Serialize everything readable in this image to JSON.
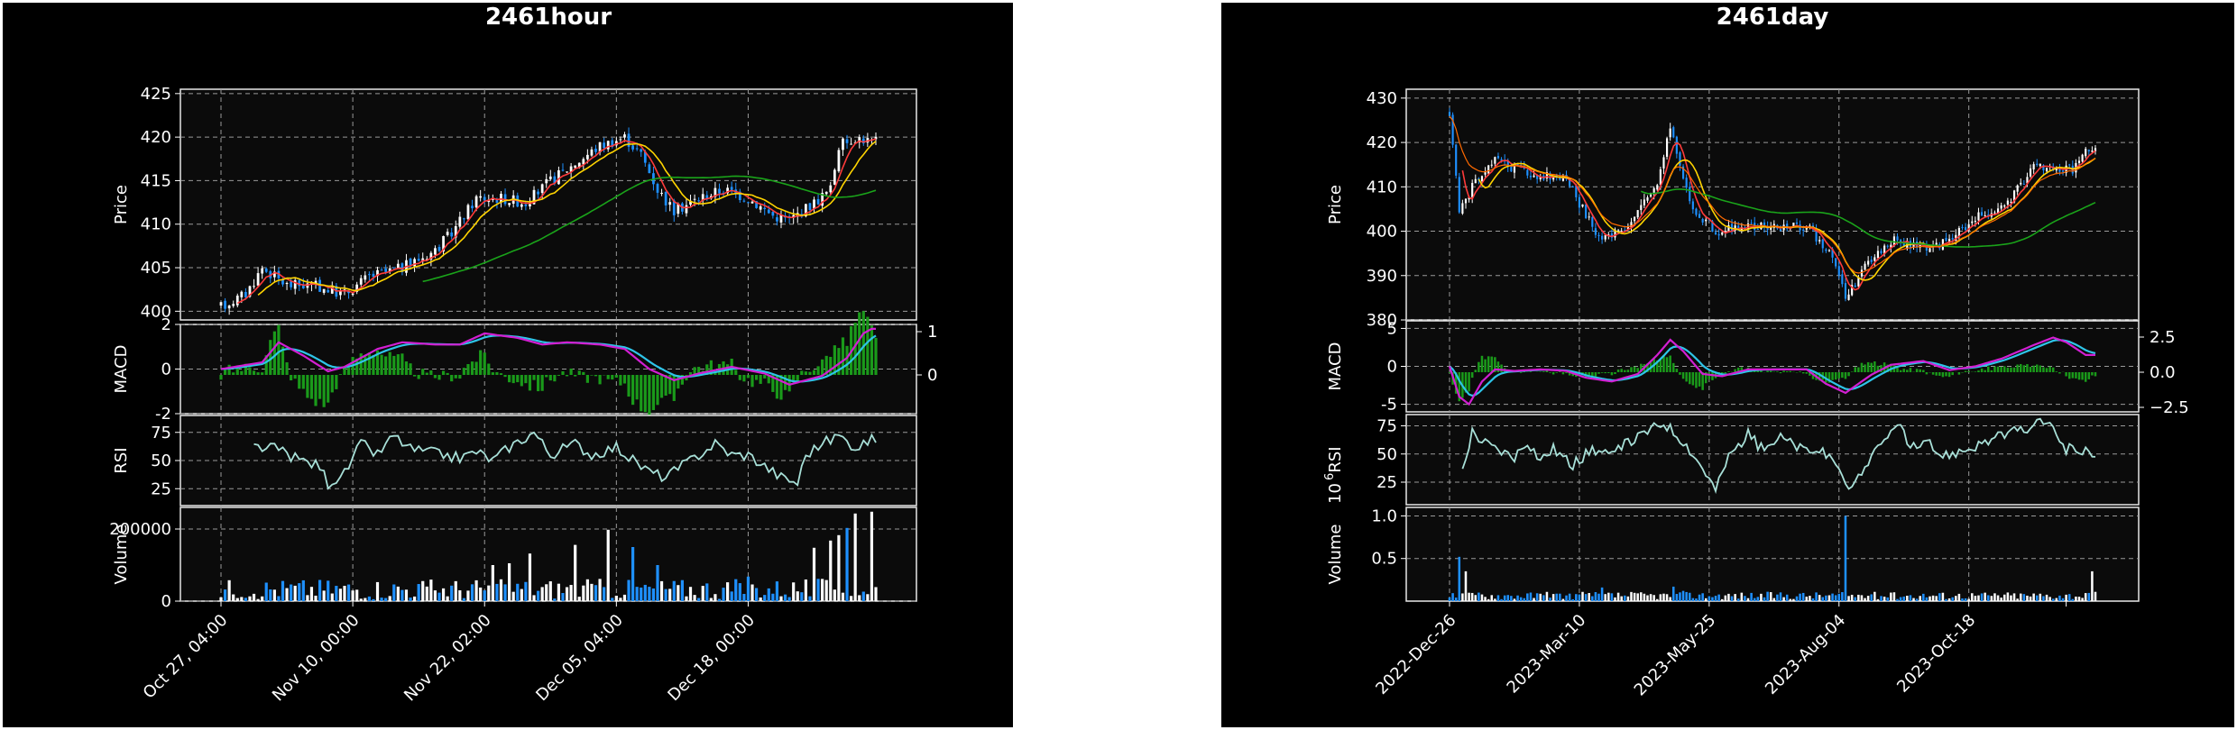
{
  "chart_data": [
    {
      "type": "candlestick",
      "title": "2461hour",
      "panels": [
        {
          "ylabel": "Price",
          "yticks": [
            400,
            405,
            410,
            415,
            420,
            425
          ],
          "ylim": [
            399,
            425.5
          ]
        },
        {
          "ylabel": "MACD",
          "yticks_left": [
            -2,
            0,
            2
          ],
          "yticks_right": [
            0,
            1
          ],
          "ylim": [
            -2,
            2
          ]
        },
        {
          "ylabel": "RSI",
          "yticks": [
            25,
            50,
            75
          ],
          "ylim": [
            10,
            90
          ]
        },
        {
          "ylabel": "Volume",
          "yticks": [
            0,
            200000
          ],
          "ytick_labels": [
            "0",
            "200000"
          ],
          "ylim": [
            0,
            260000
          ]
        }
      ],
      "xtick_labels": [
        "Oct 27, 04:00",
        "Nov 10, 00:00",
        "Nov 22, 02:00",
        "Dec 05, 04:00",
        "Dec 18, 00:00"
      ],
      "price_anchors": [
        [
          0,
          400.5
        ],
        [
          6,
          402
        ],
        [
          10,
          405
        ],
        [
          16,
          403
        ],
        [
          22,
          403
        ],
        [
          30,
          402
        ],
        [
          36,
          404
        ],
        [
          44,
          405
        ],
        [
          52,
          407
        ],
        [
          56,
          409
        ],
        [
          62,
          413
        ],
        [
          68,
          413
        ],
        [
          74,
          412.5
        ],
        [
          80,
          415
        ],
        [
          86,
          417
        ],
        [
          92,
          419
        ],
        [
          98,
          420
        ],
        [
          102,
          418
        ],
        [
          106,
          414
        ],
        [
          110,
          411.5
        ],
        [
          116,
          413
        ],
        [
          122,
          414
        ],
        [
          128,
          413
        ],
        [
          134,
          411
        ],
        [
          138,
          410.5
        ],
        [
          144,
          412.5
        ],
        [
          148,
          414
        ],
        [
          150,
          419
        ],
        [
          154,
          420
        ],
        [
          158,
          419.5
        ]
      ],
      "macd_anchors": [
        [
          0,
          0
        ],
        [
          10,
          0.3
        ],
        [
          14,
          1.2
        ],
        [
          20,
          0.6
        ],
        [
          26,
          -0.1
        ],
        [
          30,
          0.1
        ],
        [
          38,
          0.9
        ],
        [
          44,
          1.2
        ],
        [
          52,
          1.1
        ],
        [
          58,
          1.1
        ],
        [
          64,
          1.6
        ],
        [
          72,
          1.4
        ],
        [
          78,
          1.1
        ],
        [
          84,
          1.2
        ],
        [
          92,
          1.1
        ],
        [
          98,
          0.9
        ],
        [
          104,
          0
        ],
        [
          110,
          -0.5
        ],
        [
          116,
          -0.2
        ],
        [
          124,
          0.1
        ],
        [
          132,
          -0.2
        ],
        [
          138,
          -0.7
        ],
        [
          146,
          -0.3
        ],
        [
          152,
          0.5
        ],
        [
          156,
          1.6
        ],
        [
          158,
          1.8
        ]
      ],
      "rsi_anchors": [
        [
          8,
          62
        ],
        [
          14,
          60
        ],
        [
          18,
          52
        ],
        [
          24,
          45
        ],
        [
          26,
          30
        ],
        [
          30,
          38
        ],
        [
          34,
          65
        ],
        [
          38,
          55
        ],
        [
          42,
          72
        ],
        [
          46,
          60
        ],
        [
          54,
          55
        ],
        [
          58,
          52
        ],
        [
          62,
          58
        ],
        [
          66,
          50
        ],
        [
          70,
          62
        ],
        [
          76,
          75
        ],
        [
          80,
          55
        ],
        [
          86,
          65
        ],
        [
          90,
          55
        ],
        [
          96,
          62
        ],
        [
          100,
          50
        ],
        [
          104,
          40
        ],
        [
          108,
          35
        ],
        [
          112,
          45
        ],
        [
          116,
          55
        ],
        [
          120,
          65
        ],
        [
          124,
          55
        ],
        [
          128,
          55
        ],
        [
          132,
          45
        ],
        [
          136,
          35
        ],
        [
          140,
          30
        ],
        [
          142,
          55
        ],
        [
          146,
          65
        ],
        [
          150,
          72
        ],
        [
          154,
          62
        ],
        [
          158,
          68
        ]
      ],
      "volume_spikes": [
        [
          66,
          100000
        ],
        [
          70,
          105000
        ],
        [
          75,
          132000
        ],
        [
          86,
          156000
        ],
        [
          94,
          198000
        ],
        [
          100,
          150000
        ],
        [
          106,
          100000
        ],
        [
          128,
          68000
        ],
        [
          144,
          148000
        ],
        [
          148,
          168000
        ],
        [
          150,
          183000
        ],
        [
          152,
          203000
        ],
        [
          154,
          243000
        ],
        [
          158,
          248000
        ]
      ]
    },
    {
      "type": "candlestick",
      "title": "2461day",
      "panels": [
        {
          "ylabel": "Price",
          "yticks": [
            380,
            390,
            400,
            410,
            420,
            430
          ],
          "ylim": [
            380,
            432
          ]
        },
        {
          "ylabel": "MACD",
          "yticks_left": [
            -5,
            0,
            5
          ],
          "yticks_right": [
            -2.5,
            0.0,
            2.5
          ],
          "ytick_right_labels": [
            "−2.5",
            "0.0",
            "2.5"
          ],
          "ylim": [
            -6,
            6
          ]
        },
        {
          "ylabel": "RSI",
          "yticks": [
            25,
            50,
            75
          ],
          "ylim": [
            5,
            85
          ]
        },
        {
          "ylabel": "Volume",
          "yticks": [
            0.5,
            1.0
          ],
          "ytick_labels": [
            "0.5",
            "1.0"
          ],
          "ylim": [
            0,
            1.1
          ],
          "offset_label": "10",
          "offset_exponent": "6"
        }
      ],
      "xtick_labels": [
        "2022-Dec-26",
        "2023-Mar-10",
        "2023-May-25",
        "2023-Aug-04",
        "2023-Oct-18"
      ],
      "price_anchors": [
        [
          0,
          427
        ],
        [
          3,
          405
        ],
        [
          8,
          411
        ],
        [
          14,
          416
        ],
        [
          24,
          413
        ],
        [
          36,
          412
        ],
        [
          46,
          398
        ],
        [
          56,
          402
        ],
        [
          64,
          411
        ],
        [
          68,
          424
        ],
        [
          74,
          406
        ],
        [
          82,
          400
        ],
        [
          90,
          401
        ],
        [
          100,
          401
        ],
        [
          110,
          401
        ],
        [
          118,
          395
        ],
        [
          122,
          385
        ],
        [
          128,
          392
        ],
        [
          136,
          398
        ],
        [
          146,
          396
        ],
        [
          154,
          398
        ],
        [
          162,
          403
        ],
        [
          172,
          406
        ],
        [
          180,
          415
        ],
        [
          186,
          414
        ],
        [
          192,
          414
        ],
        [
          196,
          418
        ]
      ],
      "macd_anchors": [
        [
          0,
          0
        ],
        [
          3,
          -4
        ],
        [
          6,
          -5
        ],
        [
          10,
          -2
        ],
        [
          14,
          -0.4
        ],
        [
          20,
          -0.6
        ],
        [
          28,
          -0.4
        ],
        [
          36,
          -0.6
        ],
        [
          42,
          -1.5
        ],
        [
          50,
          -2
        ],
        [
          58,
          -1
        ],
        [
          64,
          1.5
        ],
        [
          68,
          3.5
        ],
        [
          72,
          2
        ],
        [
          78,
          -1
        ],
        [
          84,
          -1.3
        ],
        [
          92,
          -0.4
        ],
        [
          100,
          -0.4
        ],
        [
          110,
          -0.4
        ],
        [
          116,
          -2.3
        ],
        [
          122,
          -3.5
        ],
        [
          130,
          -1.1
        ],
        [
          136,
          0.2
        ],
        [
          146,
          0.7
        ],
        [
          154,
          -0.5
        ],
        [
          162,
          0
        ],
        [
          170,
          1
        ],
        [
          180,
          2.8
        ],
        [
          186,
          3.8
        ],
        [
          190,
          3.2
        ],
        [
          196,
          1.5
        ]
      ],
      "rsi_anchors": [
        [
          4,
          36
        ],
        [
          7,
          70
        ],
        [
          10,
          62
        ],
        [
          14,
          55
        ],
        [
          20,
          48
        ],
        [
          24,
          62
        ],
        [
          28,
          45
        ],
        [
          32,
          55
        ],
        [
          38,
          40
        ],
        [
          44,
          55
        ],
        [
          50,
          48
        ],
        [
          54,
          58
        ],
        [
          62,
          72
        ],
        [
          66,
          78
        ],
        [
          72,
          62
        ],
        [
          78,
          38
        ],
        [
          82,
          18
        ],
        [
          86,
          48
        ],
        [
          92,
          68
        ],
        [
          96,
          55
        ],
        [
          102,
          65
        ],
        [
          108,
          55
        ],
        [
          116,
          50
        ],
        [
          120,
          32
        ],
        [
          124,
          20
        ],
        [
          128,
          40
        ],
        [
          134,
          60
        ],
        [
          138,
          80
        ],
        [
          142,
          55
        ],
        [
          148,
          58
        ],
        [
          152,
          48
        ],
        [
          160,
          55
        ],
        [
          166,
          62
        ],
        [
          172,
          68
        ],
        [
          178,
          72
        ],
        [
          184,
          80
        ],
        [
          190,
          55
        ],
        [
          196,
          52
        ]
      ],
      "volume_spikes": [
        [
          3,
          0.52
        ],
        [
          5,
          0.35
        ],
        [
          9,
          0.1
        ],
        [
          47,
          0.16
        ],
        [
          69,
          0.17
        ],
        [
          72,
          0.12
        ],
        [
          122,
          1.0
        ],
        [
          130,
          0.08
        ],
        [
          136,
          0.1
        ],
        [
          198,
          0.35
        ]
      ]
    }
  ]
}
